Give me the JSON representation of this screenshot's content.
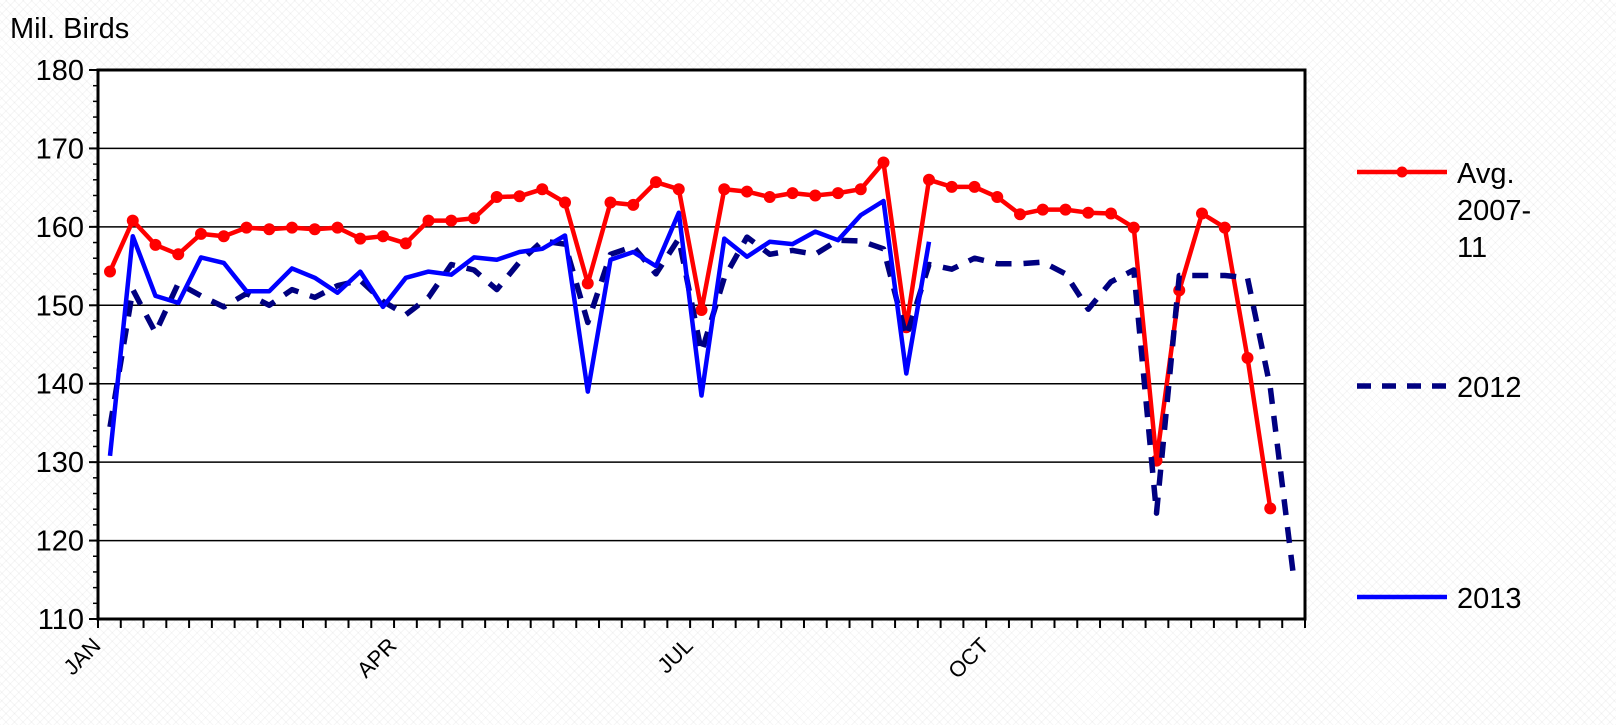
{
  "chart_data": {
    "type": "line",
    "ylabel": "Mil. Birds",
    "ylim": [
      110,
      180
    ],
    "y_ticks": [
      "110",
      "120",
      "130",
      "140",
      "150",
      "160",
      "170",
      "180"
    ],
    "x_labels": [
      "JAN",
      "APR",
      "JUL",
      "OCT"
    ],
    "x_label_weeks": [
      1,
      14,
      27,
      40
    ],
    "weeks": 53,
    "grid": "horizontal",
    "legend_position": "right",
    "series": [
      {
        "name": "Avg. 2007-11",
        "legend_lines": [
          "Avg.",
          "2007-",
          "11"
        ],
        "color": "#ff0000",
        "style": "solid-markers",
        "x": [
          1,
          2,
          3,
          4,
          5,
          6,
          7,
          8,
          9,
          10,
          11,
          12,
          13,
          14,
          15,
          16,
          17,
          18,
          19,
          20,
          21,
          22,
          23,
          24,
          25,
          26,
          27,
          28,
          29,
          30,
          31,
          32,
          33,
          34,
          35,
          36,
          37,
          38,
          39,
          40,
          41,
          42,
          43,
          44,
          45,
          46,
          47,
          48,
          49,
          50,
          51,
          52,
          53
        ],
        "values": [
          154.3,
          160.8,
          157.7,
          156.5,
          159.1,
          158.8,
          159.9,
          159.7,
          159.9,
          159.7,
          159.9,
          158.5,
          158.8,
          157.9,
          160.8,
          160.8,
          161.1,
          163.8,
          163.9,
          164.8,
          163.1,
          152.8,
          163.1,
          162.8,
          165.7,
          164.8,
          149.4,
          164.8,
          164.5,
          163.8,
          164.3,
          164.0,
          164.3,
          164.8,
          168.2,
          147.2,
          166.0,
          165.1,
          165.1,
          163.8,
          161.6,
          162.2,
          162.2,
          161.8,
          161.7,
          159.9,
          130.2,
          151.9,
          161.7,
          159.9,
          143.3,
          124.1,
          null
        ]
      },
      {
        "name": "2012",
        "color": "#000080",
        "style": "dashed",
        "x": [
          1,
          2,
          3,
          4,
          5,
          6,
          7,
          8,
          9,
          10,
          11,
          12,
          13,
          14,
          15,
          16,
          17,
          18,
          19,
          20,
          21,
          22,
          23,
          24,
          25,
          26,
          27,
          28,
          29,
          30,
          31,
          32,
          33,
          34,
          35,
          36,
          37,
          38,
          39,
          40,
          41,
          42,
          43,
          44,
          45,
          46,
          47,
          48,
          49,
          50,
          51,
          52,
          53
        ],
        "values": [
          134.5,
          152.0,
          146.5,
          152.8,
          151.2,
          149.8,
          151.5,
          150.0,
          152.0,
          151.0,
          152.5,
          153.2,
          150.5,
          148.8,
          151.0,
          155.2,
          154.5,
          152.0,
          155.5,
          158.2,
          157.8,
          147.8,
          156.5,
          157.5,
          154.0,
          158.5,
          144.0,
          153.5,
          158.7,
          156.5,
          157.0,
          156.5,
          158.3,
          158.2,
          157.2,
          146.0,
          155.2,
          154.6,
          156.0,
          155.3,
          155.3,
          155.5,
          154.0,
          149.5,
          153.0,
          154.5,
          123.5,
          153.8,
          153.8,
          153.8,
          153.5,
          139.5,
          116.0
        ]
      },
      {
        "name": "2013",
        "color": "#0000ff",
        "style": "solid",
        "x": [
          1,
          2,
          3,
          4,
          5,
          6,
          7,
          8,
          9,
          10,
          11,
          12,
          13,
          14,
          15,
          16,
          17,
          18,
          19,
          20,
          21,
          22,
          23,
          24,
          25,
          26,
          27,
          28,
          29,
          30,
          31,
          32,
          33,
          34,
          35,
          36,
          37
        ],
        "values": [
          130.8,
          158.8,
          151.2,
          150.3,
          156.1,
          155.4,
          151.8,
          151.8,
          154.7,
          153.5,
          151.6,
          154.3,
          149.8,
          153.5,
          154.3,
          153.9,
          156.1,
          155.8,
          156.8,
          157.2,
          158.9,
          139.0,
          155.8,
          156.8,
          155.0,
          161.8,
          138.5,
          158.5,
          156.2,
          158.1,
          157.8,
          159.4,
          158.3,
          161.5,
          163.3,
          141.3,
          158.1
        ]
      }
    ]
  }
}
